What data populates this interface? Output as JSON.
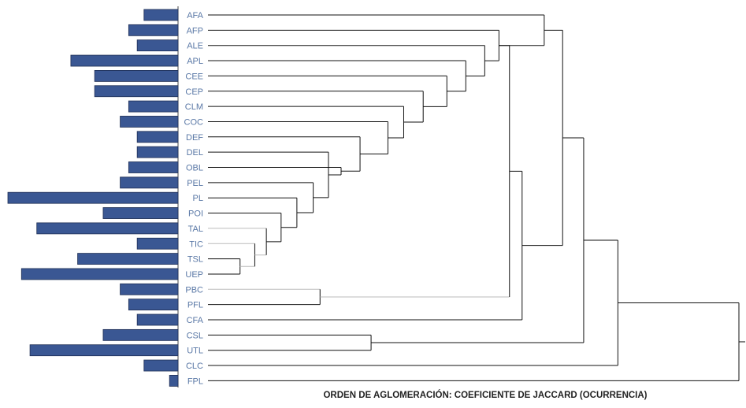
{
  "figure": {
    "caption": "ORDEN DE AGLOMERACIÓN: COEFICIENTE DE JACCARD (OCURRENCIA)",
    "label_color": "#5a78a6",
    "bar_color": "#3a5793",
    "bar_outline": "#1f2f55",
    "line_color": "#111111",
    "light_line_color": "#bbbbbb"
  },
  "chart_data": {
    "type": "dendrogram",
    "leaves": [
      {
        "label": "AFA",
        "bar": 0.2
      },
      {
        "label": "AFP",
        "bar": 0.29
      },
      {
        "label": "ALE",
        "bar": 0.24
      },
      {
        "label": "APL",
        "bar": 0.63
      },
      {
        "label": "CEE",
        "bar": 0.49
      },
      {
        "label": "CEP",
        "bar": 0.49
      },
      {
        "label": "CLM",
        "bar": 0.29
      },
      {
        "label": "COC",
        "bar": 0.34
      },
      {
        "label": "DEF",
        "bar": 0.24
      },
      {
        "label": "DEL",
        "bar": 0.24
      },
      {
        "label": "OBL",
        "bar": 0.29
      },
      {
        "label": "PEL",
        "bar": 0.34
      },
      {
        "label": "PL",
        "bar": 1.0
      },
      {
        "label": "POI",
        "bar": 0.44
      },
      {
        "label": "TAL",
        "bar": 0.83
      },
      {
        "label": "TIC",
        "bar": 0.24
      },
      {
        "label": "TSL",
        "bar": 0.59
      },
      {
        "label": "UEP",
        "bar": 0.92
      },
      {
        "label": "PBC",
        "bar": 0.34
      },
      {
        "label": "PFL",
        "bar": 0.29
      },
      {
        "label": "CFA",
        "bar": 0.24
      },
      {
        "label": "CSL",
        "bar": 0.44
      },
      {
        "label": "UTL",
        "bar": 0.87
      },
      {
        "label": "CLC",
        "bar": 0.2
      },
      {
        "label": "FPL",
        "bar": 0.05
      }
    ],
    "merges": [
      {
        "id": "n1",
        "children": [
          "TSL",
          "UEP"
        ],
        "height": 0.052
      },
      {
        "id": "n2",
        "children": [
          "TIC",
          "n1"
        ],
        "height": 0.08
      },
      {
        "id": "n3",
        "children": [
          "TAL",
          "n2"
        ],
        "height": 0.102
      },
      {
        "id": "n4",
        "children": [
          "POI",
          "n3"
        ],
        "height": 0.13
      },
      {
        "id": "n5",
        "children": [
          "PL",
          "n4"
        ],
        "height": 0.16
      },
      {
        "id": "n6",
        "children": [
          "PEL",
          "n5"
        ],
        "height": 0.191
      },
      {
        "id": "n7",
        "children": [
          "DEL",
          "n6"
        ],
        "height": 0.22
      },
      {
        "id": "n8",
        "children": [
          "OBL",
          "n7"
        ],
        "height": 0.244
      },
      {
        "id": "n9",
        "children": [
          "DEF",
          "n8"
        ],
        "height": 0.28
      },
      {
        "id": "n10",
        "children": [
          "COC",
          "n9"
        ],
        "height": 0.333
      },
      {
        "id": "n11",
        "children": [
          "CLM",
          "n10"
        ],
        "height": 0.363
      },
      {
        "id": "n12",
        "children": [
          "CEP",
          "n11"
        ],
        "height": 0.4
      },
      {
        "id": "n13",
        "children": [
          "CEE",
          "n12"
        ],
        "height": 0.445
      },
      {
        "id": "n14",
        "children": [
          "APL",
          "n13"
        ],
        "height": 0.481
      },
      {
        "id": "n15",
        "children": [
          "ALE",
          "n14"
        ],
        "height": 0.517
      },
      {
        "id": "n16",
        "children": [
          "AFP",
          "n15"
        ],
        "height": 0.544
      },
      {
        "id": "n17",
        "children": [
          "PBC",
          "PFL"
        ],
        "height": 0.204
      },
      {
        "id": "n18",
        "children": [
          "n14x",
          "n17"
        ],
        "height": 0.564
      },
      {
        "id": "n19",
        "children": [
          "CFA",
          "n18"
        ],
        "height": 0.588
      },
      {
        "id": "n20",
        "children": [
          "AFA",
          "n16"
        ],
        "height": 0.63
      },
      {
        "id": "n21",
        "children": [
          "CSL",
          "UTL"
        ],
        "height": 0.301
      },
      {
        "id": "n22",
        "children": [
          "n20",
          "n19"
        ],
        "height": 0.665
      },
      {
        "id": "n23",
        "children": [
          "n22",
          "n21"
        ],
        "height": 0.705
      },
      {
        "id": "n24",
        "children": [
          "n23",
          "CLC"
        ],
        "height": 0.77
      },
      {
        "id": "n25",
        "children": [
          "n24",
          "FPL"
        ],
        "height": 1.0
      }
    ]
  }
}
